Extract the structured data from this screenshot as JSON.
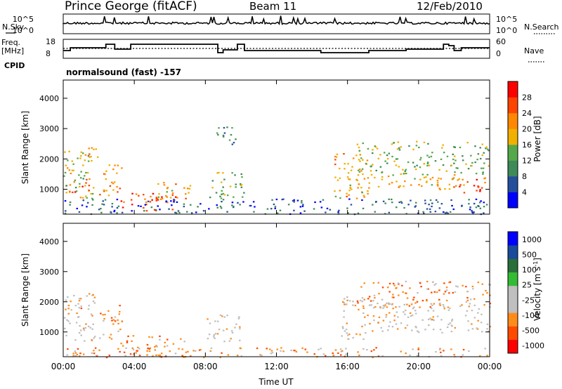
{
  "header": {
    "station": "Prince George (fitACF)",
    "beam": "Beam 11",
    "date": "12/Feb/2010"
  },
  "strip1": {
    "left_label": "N.Sky",
    "right_label": "N.Search",
    "left_ticks": [
      "10^5",
      "10^0"
    ],
    "right_ticks": [
      "10^5",
      "10^0"
    ]
  },
  "strip2": {
    "left_label_1": "Freq.",
    "left_label_2": "[MHz]",
    "right_label": "Nave",
    "left_ticks": [
      "18",
      "8"
    ],
    "right_ticks": [
      "60",
      "0"
    ]
  },
  "cpid": {
    "label": "CPID",
    "value": "normalsound (fast) -157"
  },
  "colors": {
    "power": [
      "#0000ff",
      "#254f9c",
      "#3f8a57",
      "#55a84a",
      "#f0b000",
      "#ff8800",
      "#ff4400",
      "#ff0000"
    ],
    "velocity": [
      "#ff0000",
      "#ff4a00",
      "#ff8c1a",
      "#bfbfbf",
      "#bfbfbf",
      "#33bb33",
      "#2a6e3a",
      "#1a4a9a",
      "#0000ff"
    ]
  },
  "chart_data": [
    {
      "type": "heatmap",
      "title": "",
      "ylabel": "Slant Range [km]",
      "ylim": [
        180,
        4600
      ],
      "xlim_hours": [
        0,
        24
      ],
      "yticks": [
        "1000",
        "2000",
        "3000",
        "4000"
      ],
      "colorbar": {
        "label": "Power [dB]",
        "ticks": [
          "4",
          "8",
          "12",
          "16",
          "20",
          "24",
          "28"
        ],
        "range": [
          0,
          32
        ]
      },
      "scatter_regions": [
        {
          "t0": 0.0,
          "t1": 1.8,
          "r0": 700,
          "r1": 2300,
          "v": 16
        },
        {
          "t0": 0.3,
          "t1": 1.6,
          "r0": 900,
          "r1": 1400,
          "v": 26
        },
        {
          "t0": 1.0,
          "t1": 2.0,
          "r0": 1800,
          "r1": 2400,
          "v": 22
        },
        {
          "t0": 2.0,
          "t1": 3.3,
          "r0": 800,
          "r1": 1900,
          "v": 22
        },
        {
          "t0": 3.2,
          "t1": 6.3,
          "r0": 300,
          "r1": 900,
          "v": 26
        },
        {
          "t0": 4.7,
          "t1": 7.2,
          "r0": 700,
          "r1": 1300,
          "v": 20
        },
        {
          "t0": 8.1,
          "t1": 10.2,
          "r0": 700,
          "r1": 1600,
          "v": 14
        },
        {
          "t0": 8.6,
          "t1": 10.0,
          "r0": 2500,
          "r1": 3100,
          "v": 10
        },
        {
          "t0": 15.2,
          "t1": 17.2,
          "r0": 700,
          "r1": 2200,
          "v": 20
        },
        {
          "t0": 16.0,
          "t1": 22.6,
          "r0": 1000,
          "r1": 1500,
          "v": 20
        },
        {
          "t0": 16.5,
          "t1": 24.0,
          "r0": 1500,
          "r1": 2600,
          "v": 14
        },
        {
          "t0": 22.0,
          "t1": 24.0,
          "r0": 900,
          "r1": 1400,
          "v": 26
        },
        {
          "t0": 0.0,
          "t1": 24.0,
          "r0": 200,
          "r1": 700,
          "v": 6
        }
      ]
    },
    {
      "type": "heatmap",
      "title": "",
      "ylabel": "Slant Range [km]",
      "xlabel": "Time UT",
      "ylim": [
        180,
        4600
      ],
      "xlim_hours": [
        0,
        24
      ],
      "yticks": [
        "1000",
        "2000",
        "3000",
        "4000"
      ],
      "xticks": [
        "00:00",
        "04:00",
        "08:00",
        "12:00",
        "16:00",
        "20:00",
        "00:00"
      ],
      "colorbar": {
        "label": "Velocity [m s^-1]",
        "ticks": [
          "-1000",
          "-500",
          "-100",
          "-25",
          "25",
          "100",
          "500",
          "1000"
        ]
      },
      "scatter_regions": [
        {
          "t0": 0.0,
          "t1": 1.8,
          "r0": 700,
          "r1": 2300,
          "v": 3
        },
        {
          "t0": 0.0,
          "t1": 1.0,
          "r0": 1800,
          "r1": 2300,
          "v": 2
        },
        {
          "t0": 2.0,
          "t1": 3.3,
          "r0": 700,
          "r1": 1900,
          "v": 2
        },
        {
          "t0": 3.2,
          "t1": 7.0,
          "r0": 200,
          "r1": 900,
          "v": 2
        },
        {
          "t0": 8.0,
          "t1": 10.0,
          "r0": 700,
          "r1": 1600,
          "v": 3
        },
        {
          "t0": 15.5,
          "t1": 17.0,
          "r0": 700,
          "r1": 2200,
          "v": 3
        },
        {
          "t0": 16.5,
          "t1": 24.0,
          "r0": 1800,
          "r1": 2700,
          "v": 2
        },
        {
          "t0": 17.0,
          "t1": 24.0,
          "r0": 1000,
          "r1": 2000,
          "v": 3
        },
        {
          "t0": 0.0,
          "t1": 24.0,
          "r0": 180,
          "r1": 500,
          "v": 2
        }
      ]
    }
  ]
}
